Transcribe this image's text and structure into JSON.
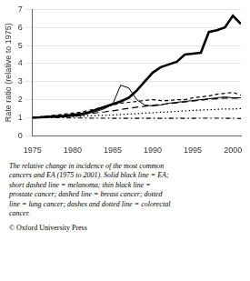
{
  "chart_data": {
    "type": "line",
    "ylabel": "Rate ratio (relative to 1975)",
    "x": [
      1975,
      1976,
      1977,
      1978,
      1979,
      1980,
      1981,
      1982,
      1983,
      1984,
      1985,
      1986,
      1987,
      1988,
      1989,
      1990,
      1991,
      1992,
      1993,
      1994,
      1995,
      1996,
      1997,
      1998,
      1999,
      2000,
      2001
    ],
    "series": [
      {
        "color": "#000000",
        "line_style": "dashdot",
        "values": [
          1.0,
          0.99,
          0.99,
          0.99,
          0.99,
          0.98,
          0.98,
          0.97,
          0.97,
          0.97,
          0.96,
          0.96,
          0.96,
          0.96,
          0.96,
          0.96,
          0.96,
          0.96,
          0.96,
          0.96,
          0.96,
          0.97,
          0.97,
          0.97,
          0.96,
          0.96,
          0.95
        ]
      },
      {
        "color": "#000000",
        "line_style": "dotted",
        "values": [
          1.0,
          1.0,
          1.02,
          1.03,
          1.05,
          1.06,
          1.08,
          1.1,
          1.12,
          1.13,
          1.15,
          1.18,
          1.2,
          1.22,
          1.25,
          1.27,
          1.3,
          1.32,
          1.35,
          1.37,
          1.4,
          1.42,
          1.44,
          1.46,
          1.48,
          1.48,
          1.5
        ]
      },
      {
        "color": "#000000",
        "line_style": "dashed",
        "values": [
          1.0,
          1.03,
          1.06,
          1.08,
          1.1,
          1.13,
          1.18,
          1.22,
          1.27,
          1.32,
          1.38,
          1.45,
          1.52,
          1.58,
          1.63,
          1.68,
          1.73,
          1.78,
          1.82,
          1.87,
          1.92,
          1.97,
          2.02,
          2.05,
          2.08,
          2.08,
          2.08
        ]
      },
      {
        "color": "#000000",
        "line_style": "solid",
        "values": [
          1.0,
          1.02,
          1.05,
          1.02,
          1.05,
          1.08,
          1.1,
          1.25,
          1.35,
          1.5,
          1.75,
          2.8,
          2.65,
          2.0,
          1.7,
          1.65,
          1.7,
          1.8,
          1.85,
          1.9,
          1.95,
          2.0,
          2.05,
          2.1,
          2.15,
          2.1,
          2.1
        ]
      },
      {
        "color": "#000000",
        "line_style": "shortdashed",
        "values": [
          1.0,
          1.05,
          1.1,
          1.15,
          1.2,
          1.25,
          1.3,
          1.4,
          1.5,
          1.6,
          1.7,
          1.8,
          1.85,
          1.9,
          1.95,
          2.0,
          1.95,
          1.95,
          2.0,
          2.0,
          2.1,
          2.15,
          2.2,
          2.3,
          2.35,
          2.4,
          2.25
        ]
      },
      {
        "color": "#000000",
        "line_style": "thick",
        "values": [
          1.0,
          1.02,
          1.05,
          1.08,
          1.1,
          1.15,
          1.2,
          1.3,
          1.45,
          1.6,
          1.75,
          1.9,
          2.1,
          2.5,
          3.0,
          3.5,
          3.8,
          3.95,
          4.1,
          4.5,
          4.55,
          4.6,
          5.75,
          5.85,
          6.0,
          6.65,
          6.2
        ]
      }
    ],
    "xlim": [
      1975,
      2001
    ],
    "xticks": [
      1975,
      1980,
      1985,
      1990,
      1995,
      2000
    ],
    "ylim": [
      0,
      7
    ],
    "yticks": [
      0,
      1,
      2,
      3,
      4,
      5,
      6,
      7
    ],
    "grid": "y",
    "annotations": [
      "The relative change in incidence of the most common\ncancers and EA (1975 to 2001). Solid black line = EA;\nshort dashed line = melanoma; thin black line =\nprostate cancer; dashed line = breast cancer; dotted\nline = lung cancer; dashes and dotted line = colorectal\ncancer.",
      "© Oxford University Press"
    ]
  }
}
